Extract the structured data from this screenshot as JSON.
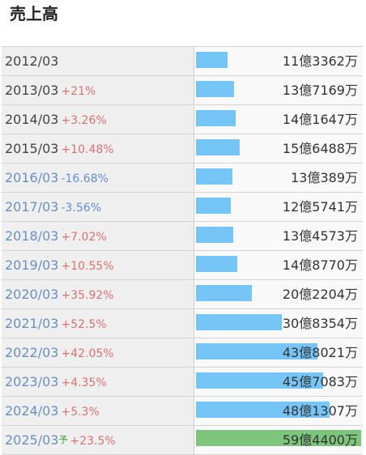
{
  "title": "売上高",
  "rows": [
    {
      "year": "2012/03",
      "change": "",
      "dir": "",
      "forecast": false,
      "value": "11億3362万",
      "amount": 11.3362,
      "year_color": "dark"
    },
    {
      "year": "2013/03",
      "change": "+21%",
      "dir": "up",
      "forecast": false,
      "value": "13億7169万",
      "amount": 13.7169,
      "year_color": "dark"
    },
    {
      "year": "2014/03",
      "change": "+3.26%",
      "dir": "up",
      "forecast": false,
      "value": "14億1647万",
      "amount": 14.1647,
      "year_color": "dark"
    },
    {
      "year": "2015/03",
      "change": "+10.48%",
      "dir": "up",
      "forecast": false,
      "value": "15億6488万",
      "amount": 15.6488,
      "year_color": "dark"
    },
    {
      "year": "2016/03",
      "change": "-16.68%",
      "dir": "down",
      "forecast": false,
      "value": "13億389万",
      "amount": 13.0389,
      "year_color": "blue"
    },
    {
      "year": "2017/03",
      "change": "-3.56%",
      "dir": "down",
      "forecast": false,
      "value": "12億5741万",
      "amount": 12.5741,
      "year_color": "blue"
    },
    {
      "year": "2018/03",
      "change": "+7.02%",
      "dir": "up",
      "forecast": false,
      "value": "13億4573万",
      "amount": 13.4573,
      "year_color": "blue"
    },
    {
      "year": "2019/03",
      "change": "+10.55%",
      "dir": "up",
      "forecast": false,
      "value": "14億8770万",
      "amount": 14.877,
      "year_color": "blue"
    },
    {
      "year": "2020/03",
      "change": "+35.92%",
      "dir": "up",
      "forecast": false,
      "value": "20億2204万",
      "amount": 20.2204,
      "year_color": "blue"
    },
    {
      "year": "2021/03",
      "change": "+52.5%",
      "dir": "up",
      "forecast": false,
      "value": "30億8354万",
      "amount": 30.8354,
      "year_color": "blue"
    },
    {
      "year": "2022/03",
      "change": "+42.05%",
      "dir": "up",
      "forecast": false,
      "value": "43億8021万",
      "amount": 43.8021,
      "year_color": "blue"
    },
    {
      "year": "2023/03",
      "change": "+4.35%",
      "dir": "up",
      "forecast": false,
      "value": "45億7083万",
      "amount": 45.7083,
      "year_color": "blue"
    },
    {
      "year": "2024/03",
      "change": "+5.3%",
      "dir": "up",
      "forecast": false,
      "value": "48億1307万",
      "amount": 48.1307,
      "year_color": "blue"
    },
    {
      "year": "2025/03",
      "change": "+23.5%",
      "dir": "up",
      "forecast": true,
      "forecast_mark": "予",
      "value": "59億4400万",
      "amount": 59.44,
      "year_color": "blue"
    }
  ],
  "colors": {
    "bar_actual": "#75c6f7",
    "bar_forecast": "#7dc47d",
    "change_up": "#e07070",
    "change_down": "#5f8fd6"
  }
}
